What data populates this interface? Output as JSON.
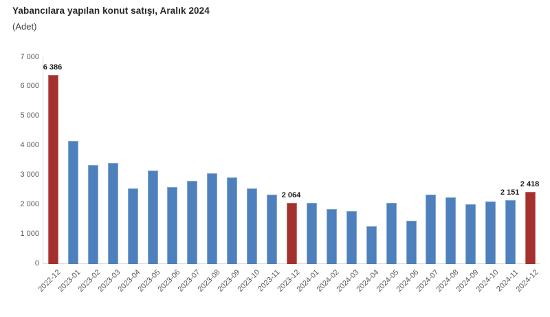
{
  "header": {
    "title": "Yabancılara yapılan konut satışı, Aralık 2024",
    "subtitle": "(Adet)"
  },
  "chart_data": {
    "type": "bar",
    "title": "Yabancılara yapılan konut satışı, Aralık 2024",
    "subtitle": "(Adet)",
    "xlabel": "",
    "ylabel": "Adet",
    "ylim": [
      0,
      7000
    ],
    "grid": false,
    "legend": "none",
    "y_ticks": [
      {
        "value": 7000,
        "label": "7 000"
      },
      {
        "value": 6000,
        "label": "6 000"
      },
      {
        "value": 5000,
        "label": "5 000"
      },
      {
        "value": 4000,
        "label": "4 000"
      },
      {
        "value": 3000,
        "label": "3 000"
      },
      {
        "value": 2000,
        "label": "2 000"
      },
      {
        "value": 1000,
        "label": "1 000"
      },
      {
        "value": 0,
        "label": "0"
      }
    ],
    "categories": [
      "2022-12",
      "2023-01",
      "2023-02",
      "2023-03",
      "2023-04",
      "2023-05",
      "2023-06",
      "2023-07",
      "2023-08",
      "2023-09",
      "2023-10",
      "2023-11",
      "2023-12",
      "2024-01",
      "2024-02",
      "2024-03",
      "2024-04",
      "2024-05",
      "2024-06",
      "2024-07",
      "2024-08",
      "2024-09",
      "2024-10",
      "2024-11",
      "2024-12"
    ],
    "values": [
      6386,
      4150,
      3340,
      3400,
      2550,
      3150,
      2600,
      2800,
      3050,
      2920,
      2540,
      2340,
      2064,
      2050,
      1840,
      1770,
      1270,
      2060,
      1450,
      2340,
      2250,
      2010,
      2110,
      2151,
      2418
    ],
    "highlight_indices": [
      0,
      12,
      24
    ],
    "data_labels": {
      "0": "6 386",
      "12": "2 064",
      "23": "2 151",
      "24": "2 418"
    },
    "colors": {
      "bar": "#4d80bc",
      "highlight": "#a5312e",
      "axis_line": "#d9d9d9",
      "tick_text": "#595959",
      "label_text": "#1a1a1a"
    }
  }
}
